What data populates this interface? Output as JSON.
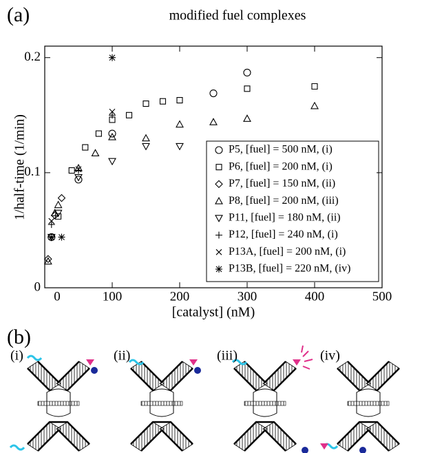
{
  "chart_data": {
    "type": "scatter",
    "title": "modified fuel complexes",
    "panel_a": "(a)",
    "panel_b": "(b)",
    "x_label": "[catalyst] (nM)",
    "y_label": "1/half-time (1/min)",
    "xlim": [
      0,
      500
    ],
    "xticks": [
      0,
      100,
      200,
      300,
      400,
      500
    ],
    "ylim": [
      0,
      0.21
    ],
    "yticks": [
      0,
      0.1,
      0.2
    ],
    "legend": "lower right",
    "series": [
      {
        "name": "P5, [fuel] = 500 nM, (i)",
        "marker": "circle",
        "color": "#000000",
        "x": [
          10,
          50,
          100,
          250,
          300
        ],
        "values": [
          0.044,
          0.094,
          0.134,
          0.169,
          0.187
        ]
      },
      {
        "name": "P6, [fuel] = 200 nM, (i)",
        "marker": "square",
        "color": "#000000",
        "x": [
          20,
          40,
          60,
          80,
          100,
          125,
          150,
          175,
          200,
          300,
          400
        ],
        "values": [
          0.062,
          0.102,
          0.122,
          0.134,
          0.146,
          0.15,
          0.16,
          0.162,
          0.163,
          0.173,
          0.175
        ]
      },
      {
        "name": "P7, [fuel] = 150 nM, (ii)",
        "marker": "diamond",
        "color": "#000000",
        "x": [
          5,
          15,
          25
        ],
        "values": [
          0.025,
          0.063,
          0.078
        ]
      },
      {
        "name": "P8, [fuel] = 200 nM, (iii)",
        "marker": "triangle-up",
        "color": "#000000",
        "x": [
          5,
          15,
          20,
          50,
          75,
          100,
          150,
          200,
          250,
          300,
          400
        ],
        "values": [
          0.023,
          0.065,
          0.072,
          0.104,
          0.117,
          0.131,
          0.13,
          0.142,
          0.144,
          0.147,
          0.158
        ]
      },
      {
        "name": "P11, [fuel] = 180 nM, (ii)",
        "marker": "triangle-down",
        "color": "#000000",
        "x": [
          10,
          20,
          50,
          100,
          150,
          200
        ],
        "values": [
          0.044,
          0.065,
          0.096,
          0.11,
          0.123,
          0.123
        ]
      },
      {
        "name": "P12, [fuel] = 240 nM, (i)",
        "marker": "plus",
        "color": "#000000",
        "x": [
          10,
          50,
          100
        ],
        "values": [
          0.055,
          0.102,
          0.15
        ]
      },
      {
        "name": "P13A, [fuel] = 200 nM, (i)",
        "marker": "x",
        "color": "#000000",
        "x": [
          10,
          50,
          100
        ],
        "values": [
          0.058,
          0.103,
          0.153
        ]
      },
      {
        "name": "P13B, [fuel] = 220 nM, (iv)",
        "marker": "asterisk",
        "color": "#000000",
        "x": [
          10,
          25,
          100
        ],
        "values": [
          0.044,
          0.044,
          0.2
        ]
      }
    ],
    "diagram_labels": [
      "(i)",
      "(ii)",
      "(iii)",
      "(iv)"
    ]
  }
}
